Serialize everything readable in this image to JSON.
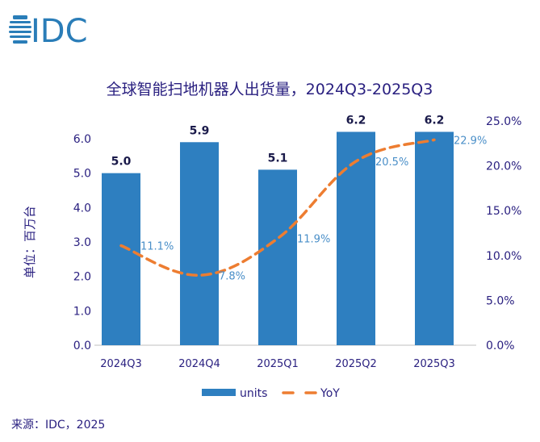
{
  "logo": {
    "text": "IDC",
    "color": "#2a7db8"
  },
  "source": "来源：IDC，2025",
  "chart_data": {
    "type": "bar+line",
    "title": "全球智能扫地机器人出货量，2024Q3-2025Q3",
    "ylabel": "单位：百万台",
    "categories": [
      "2024Q3",
      "2024Q4",
      "2025Q1",
      "2025Q2",
      "2025Q3"
    ],
    "series": [
      {
        "name": "units",
        "type": "bar",
        "axis": "left",
        "values": [
          5.0,
          5.9,
          5.1,
          6.2,
          6.2
        ],
        "labels": [
          "5.0",
          "5.9",
          "5.1",
          "6.2",
          "6.2"
        ],
        "color": "#2e7fc0"
      },
      {
        "name": "YoY",
        "type": "line",
        "style": "dashed",
        "axis": "right",
        "values": [
          11.1,
          7.8,
          11.9,
          20.5,
          22.9
        ],
        "labels": [
          "11.1%",
          "7.8%",
          "11.9%",
          "20.5%",
          "22.9%"
        ],
        "color": "#ed7d31"
      }
    ],
    "ylim_left": [
      0,
      6.0
    ],
    "yticks_left": [
      "0.0",
      "1.0",
      "2.0",
      "3.0",
      "4.0",
      "5.0",
      "6.0"
    ],
    "ylim_right": [
      0,
      25
    ],
    "yticks_right": [
      "0.0%",
      "5.0%",
      "10.0%",
      "15.0%",
      "20.0%",
      "25.0%"
    ],
    "grid": false,
    "legend": "bottom",
    "text_color": "#2a2080"
  }
}
